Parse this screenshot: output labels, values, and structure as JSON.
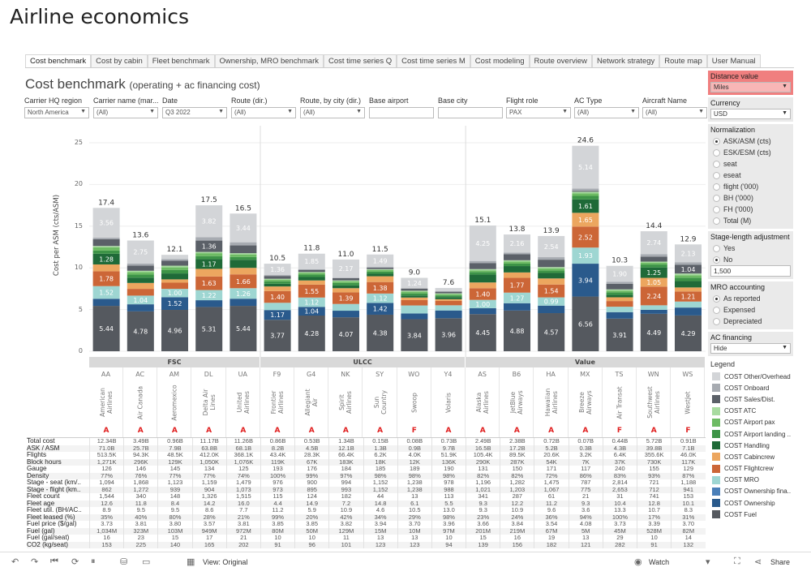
{
  "app_title": "Airline economics",
  "tabs": [
    "Cost benchmark",
    "Cost by cabin",
    "Fleet benchmark",
    "Ownership, MRO benchmark",
    "Cost time series Q",
    "Cost time series M",
    "Cost modeling",
    "Route overview",
    "Network strategy",
    "Route map",
    "User Manual"
  ],
  "active_tab": "Cost benchmark",
  "dashboard": {
    "title": "Cost benchmark",
    "subtitle": "(operating + ac financing cost)"
  },
  "filters": [
    {
      "label": "Carrier HQ region",
      "value": "North America",
      "type": "dropdown"
    },
    {
      "label": "Carrier name (mar...",
      "value": "(All)",
      "type": "dropdown"
    },
    {
      "label": "Date",
      "value": "Q3 2022",
      "type": "dropdown"
    },
    {
      "label": "Route (dir.)",
      "value": "(All)",
      "type": "dropdown"
    },
    {
      "label": "Route, by city (dir.)",
      "value": "(All)",
      "type": "dropdown"
    },
    {
      "label": "Base airport",
      "value": "",
      "type": "text"
    },
    {
      "label": "Base city",
      "value": "",
      "type": "text"
    },
    {
      "label": "Flight role",
      "value": "PAX",
      "type": "dropdown"
    },
    {
      "label": "AC Type",
      "value": "(All)",
      "type": "dropdown"
    },
    {
      "label": "Aircraft Name",
      "value": "(All)",
      "type": "dropdown"
    }
  ],
  "side": {
    "distance": {
      "title": "Distance value",
      "value": "Miles"
    },
    "currency": {
      "title": "Currency",
      "value": "USD"
    },
    "normalization": {
      "title": "Normalization",
      "options": [
        "ASK/ASM (cts)",
        "ESK/ESM (cts)",
        "seat",
        "eseat",
        "flight ('000)",
        "BH ('000)",
        "FH ('000)",
        "Total (M)"
      ],
      "selected": 0
    },
    "stage": {
      "title": "Stage-length adjustment",
      "options": [
        "Yes",
        "No"
      ],
      "selected": 1,
      "value": "1,500"
    },
    "mro": {
      "title": "MRO accounting",
      "options": [
        "As reported",
        "Expensed",
        "Depreciated"
      ],
      "selected": 0
    },
    "financing": {
      "title": "AC financing",
      "value": "Hide"
    },
    "legend_title": "Legend"
  },
  "chart_data": {
    "type": "bar",
    "stacked": true,
    "ylabel": "Cost per ASM (cts/ASM)",
    "ylim": [
      0,
      25
    ],
    "yticks": [
      0,
      5,
      10,
      15,
      20,
      25
    ],
    "grid": true,
    "groups": [
      {
        "name": "FSC",
        "count": 5
      },
      {
        "name": "ULCC",
        "count": 6
      },
      {
        "name": "Value",
        "count": 7
      }
    ],
    "codes": [
      "AA",
      "AC",
      "AM",
      "DL",
      "UA",
      "F9",
      "G4",
      "NK",
      "SY",
      "WO",
      "Y4",
      "AS",
      "B6",
      "HA",
      "MX",
      "TS",
      "WN",
      "WS"
    ],
    "names": [
      "American Airlines",
      "Air Canada",
      "Aeromexico",
      "Delta Air Lines",
      "United Airlines",
      "Frontier Airlines",
      "Allegiant Air",
      "Spirit Airlines",
      "Sun Country",
      "Swoop",
      "Volaris",
      "Alaska Airlines",
      "JetBlue Airways",
      "Hawaiian Airlines",
      "Breeze Airways",
      "Air Transat",
      "Southwest Airlines",
      "WestJet"
    ],
    "roles": [
      "A",
      "A",
      "A",
      "A",
      "A",
      "A",
      "A",
      "A",
      "A",
      "F",
      "A",
      "A",
      "A",
      "A",
      "A",
      "F",
      "A",
      "F"
    ],
    "totals": [
      "17.4",
      "13.6",
      "12.1",
      "17.5",
      "16.5",
      "10.5",
      "11.8",
      "11.0",
      "11.5",
      "9.0",
      "7.6",
      "15.1",
      "13.8",
      "13.9",
      "24.6",
      "10.3",
      "14.4",
      "12.9"
    ],
    "series": [
      {
        "name": "COST Fuel",
        "color": "#55595f",
        "values": [
          5.44,
          4.78,
          4.96,
          5.31,
          5.44,
          3.77,
          4.28,
          4.07,
          4.38,
          3.84,
          3.96,
          4.45,
          4.88,
          4.57,
          6.56,
          3.91,
          4.49,
          4.29
        ]
      },
      {
        "name": "COST Ownership",
        "color": "#2a5a8c",
        "values": [
          0.85,
          0.85,
          1.52,
          0.81,
          0.86,
          1.17,
          1.04,
          0.79,
          1.42,
          0.69,
          0.93,
          0.71,
          0.88,
          0.9,
          3.94,
          0.78,
          0.48,
          0.95
        ]
      },
      {
        "name": "COST Ownership fina...",
        "color": "#4a7fb8",
        "values": [
          0,
          0,
          0,
          0,
          0,
          0,
          0,
          0,
          0,
          0,
          0,
          0,
          0,
          0,
          0,
          0,
          0,
          0
        ]
      },
      {
        "name": "COST MRO",
        "color": "#9ed6d2",
        "values": [
          1.52,
          1.04,
          1.0,
          1.22,
          1.26,
          0.87,
          1.12,
          0.81,
          1.12,
          0.96,
          0.62,
          1.0,
          1.27,
          0.99,
          1.93,
          0.65,
          0.54,
          0.72
        ]
      },
      {
        "name": "COST Flightcrew",
        "color": "#cc6637",
        "values": [
          1.78,
          0.81,
          0.74,
          1.63,
          1.66,
          1.4,
          1.55,
          1.39,
          1.38,
          0.65,
          0.53,
          1.4,
          1.77,
          1.54,
          2.52,
          0.68,
          2.24,
          1.21
        ]
      },
      {
        "name": "COST Cabincrew",
        "color": "#eca65f",
        "values": [
          0.82,
          0.71,
          0.4,
          0.91,
          0.78,
          0.56,
          0.5,
          0.5,
          0.69,
          0.3,
          0.2,
          0.69,
          0.65,
          0.73,
          1.65,
          0.45,
          1.05,
          0.48
        ]
      },
      {
        "name": "COST Handling",
        "color": "#1f6a38",
        "values": [
          1.28,
          0.63,
          0.71,
          1.17,
          0.97,
          0.32,
          0.41,
          0.33,
          0.3,
          0.25,
          0.25,
          0.95,
          0.76,
          0.66,
          1.61,
          0.3,
          1.25,
          0.77
        ]
      },
      {
        "name": "COST Airport landing ...",
        "color": "#3d9447",
        "values": [
          0.38,
          0.38,
          0.43,
          0.36,
          0.34,
          0.3,
          0.3,
          0.3,
          0.25,
          0.25,
          0.2,
          0.3,
          0.3,
          0.3,
          0.42,
          0.3,
          0.35,
          0.4
        ]
      },
      {
        "name": "COST Airport pax",
        "color": "#6dbb63",
        "values": [
          0.4,
          0.3,
          0.3,
          0.35,
          0.3,
          0.2,
          0.2,
          0.2,
          0.2,
          0.2,
          0.15,
          0.2,
          0.25,
          0.25,
          0.29,
          0.2,
          0.2,
          0.3
        ]
      },
      {
        "name": "COST ATC",
        "color": "#a8dba0",
        "values": [
          0.15,
          0.15,
          0.2,
          0.15,
          0.15,
          0.1,
          0.1,
          0.1,
          0.1,
          0.12,
          0.1,
          0.15,
          0.15,
          0.15,
          0.2,
          0.15,
          0.15,
          0.2
        ]
      },
      {
        "name": "COST Sales/Dist.",
        "color": "#5b6068",
        "values": [
          0.81,
          0.63,
          0.59,
          1.36,
          0.93,
          0.34,
          0.26,
          0.28,
          0.17,
          0.26,
          0.2,
          0.73,
          0.72,
          0.89,
          0.1,
          0.67,
          0.6,
          1.04
        ]
      },
      {
        "name": "COST Onboard",
        "color": "#a7abb1",
        "values": [
          0.2,
          0.25,
          0.21,
          0.41,
          0.38,
          0.11,
          0.09,
          0.06,
          0.1,
          0.04,
          0.05,
          0.25,
          0.21,
          0.3,
          0.28,
          0.25,
          0.3,
          0.32
        ]
      },
      {
        "name": "COST Other/Overhead",
        "color": "#d3d5d8",
        "values": [
          3.56,
          2.75,
          0.5,
          3.82,
          3.44,
          1.36,
          1.85,
          2.17,
          1.49,
          1.24,
          0.4,
          4.25,
          2.16,
          2.54,
          5.14,
          1.9,
          2.74,
          2.13
        ]
      }
    ]
  },
  "table": {
    "rows": [
      {
        "label": "Total cost",
        "values": [
          "12.34B",
          "3.49B",
          "0.96B",
          "11.17B",
          "11.26B",
          "0.86B",
          "0.53B",
          "1.34B",
          "0.15B",
          "0.08B",
          "0.73B",
          "2.49B",
          "2.38B",
          "0.72B",
          "0.07B",
          "0.44B",
          "5.72B",
          "0.91B"
        ]
      },
      {
        "label": "ASK / ASM",
        "values": [
          "71.0B",
          "25.7B",
          "7.9B",
          "63.8B",
          "68.1B",
          "8.2B",
          "4.5B",
          "12.1B",
          "1.3B",
          "0.9B",
          "9.7B",
          "16.5B",
          "17.2B",
          "5.2B",
          "0.3B",
          "4.3B",
          "39.8B",
          "7.1B"
        ]
      },
      {
        "label": "Flights",
        "values": [
          "513.5K",
          "94.3K",
          "48.5K",
          "412.0K",
          "368.1K",
          "43.4K",
          "28.3K",
          "66.4K",
          "6.2K",
          "4.0K",
          "51.9K",
          "105.4K",
          "89.5K",
          "20.6K",
          "3.2K",
          "6.4K",
          "355.6K",
          "46.0K"
        ]
      },
      {
        "label": "Block hours",
        "values": [
          "1,271K",
          "296K",
          "129K",
          "1,050K",
          "1,076K",
          "119K",
          "67K",
          "183K",
          "18K",
          "12K",
          "136K",
          "290K",
          "287K",
          "54K",
          "7K",
          "37K",
          "730K",
          "117K"
        ]
      },
      {
        "label": "Gauge",
        "values": [
          "126",
          "146",
          "145",
          "134",
          "125",
          "193",
          "176",
          "184",
          "185",
          "189",
          "190",
          "131",
          "150",
          "171",
          "117",
          "240",
          "155",
          "129"
        ]
      },
      {
        "label": "Density",
        "values": [
          "77%",
          "76%",
          "77%",
          "77%",
          "74%",
          "100%",
          "99%",
          "97%",
          "98%",
          "98%",
          "98%",
          "82%",
          "82%",
          "72%",
          "86%",
          "83%",
          "93%",
          "87%"
        ]
      },
      {
        "label": "Stage - seat (km/..",
        "values": [
          "1,094",
          "1,868",
          "1,123",
          "1,159",
          "1,479",
          "976",
          "900",
          "994",
          "1,152",
          "1,238",
          "978",
          "1,196",
          "1,282",
          "1,475",
          "787",
          "2,814",
          "721",
          "1,188"
        ]
      },
      {
        "label": "Stage - flight (km..",
        "values": [
          "862",
          "1,272",
          "939",
          "904",
          "1,073",
          "973",
          "895",
          "993",
          "1,152",
          "1,238",
          "988",
          "1,021",
          "1,203",
          "1,067",
          "775",
          "2,653",
          "712",
          "941"
        ]
      },
      {
        "label": "Fleet count",
        "values": [
          "1,544",
          "340",
          "148",
          "1,326",
          "1,515",
          "115",
          "124",
          "182",
          "44",
          "13",
          "113",
          "341",
          "287",
          "61",
          "21",
          "31",
          "741",
          "153"
        ]
      },
      {
        "label": "Fleet age",
        "values": [
          "12.6",
          "11.8",
          "8.4",
          "14.2",
          "16.0",
          "4.4",
          "14.9",
          "7.2",
          "14.8",
          "6.1",
          "5.5",
          "9.3",
          "12.2",
          "11.2",
          "9.3",
          "10.4",
          "12.8",
          "10.1"
        ]
      },
      {
        "label": "Fleet util. (BH/AC..",
        "values": [
          "8.9",
          "9.5",
          "9.5",
          "8.6",
          "7.7",
          "11.2",
          "5.9",
          "10.9",
          "4.6",
          "10.5",
          "13.0",
          "9.3",
          "10.9",
          "9.6",
          "3.6",
          "13.3",
          "10.7",
          "8.3"
        ]
      },
      {
        "label": "Fleet leased (%)",
        "values": [
          "35%",
          "40%",
          "80%",
          "28%",
          "21%",
          "99%",
          "20%",
          "42%",
          "34%",
          "29%",
          "98%",
          "23%",
          "24%",
          "36%",
          "94%",
          "100%",
          "17%",
          "31%"
        ]
      },
      {
        "label": "Fuel price ($/gal)",
        "values": [
          "3.73",
          "3.81",
          "3.80",
          "3.57",
          "3.81",
          "3.85",
          "3.85",
          "3.82",
          "3.94",
          "3.70",
          "3.96",
          "3.66",
          "3.84",
          "3.54",
          "4.08",
          "3.73",
          "3.39",
          "3.70"
        ]
      },
      {
        "label": "Fuel (gal)",
        "values": [
          "1,034M",
          "323M",
          "103M",
          "949M",
          "972M",
          "80M",
          "50M",
          "129M",
          "15M",
          "10M",
          "97M",
          "201M",
          "219M",
          "67M",
          "5M",
          "45M",
          "528M",
          "82M"
        ]
      },
      {
        "label": "Fuel (gal/seat)",
        "values": [
          "16",
          "23",
          "15",
          "17",
          "21",
          "10",
          "10",
          "11",
          "13",
          "13",
          "10",
          "15",
          "16",
          "19",
          "13",
          "29",
          "10",
          "14"
        ]
      },
      {
        "label": "CO2 (kg/seat)",
        "values": [
          "153",
          "225",
          "140",
          "165",
          "202",
          "91",
          "96",
          "101",
          "123",
          "123",
          "94",
          "139",
          "156",
          "182",
          "121",
          "282",
          "91",
          "132"
        ]
      }
    ]
  },
  "toolbar": {
    "view_label": "View: Original",
    "watch_label": "Watch",
    "share_label": "Share"
  }
}
